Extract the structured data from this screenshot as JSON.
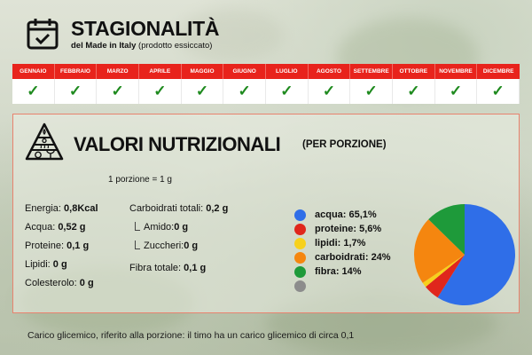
{
  "header": {
    "title": "STAGIONALITÀ",
    "subtitle_bold": "del Made in Italy",
    "subtitle_rest": " (prodotto essiccato)",
    "icon": "calendar-check-icon"
  },
  "seasonality": {
    "header_color": "#e8231c",
    "check_color": "#1e8a1e",
    "check_glyph": "✓",
    "months": [
      {
        "name": "GENNAIO",
        "available": true
      },
      {
        "name": "FEBBRAIO",
        "available": true
      },
      {
        "name": "MARZO",
        "available": true
      },
      {
        "name": "APRILE",
        "available": true
      },
      {
        "name": "MAGGIO",
        "available": true
      },
      {
        "name": "GIUGNO",
        "available": true
      },
      {
        "name": "LUGLIO",
        "available": true
      },
      {
        "name": "AGOSTO",
        "available": true
      },
      {
        "name": "SETTEMBRE",
        "available": true
      },
      {
        "name": "OTTOBRE",
        "available": true
      },
      {
        "name": "NOVEMBRE",
        "available": true
      },
      {
        "name": "DICEMBRE",
        "available": true
      }
    ]
  },
  "nutrition": {
    "icon": "food-pyramid-icon",
    "title": "VALORI NUTRIZIONALI",
    "title_suffix": "(PER PORZIONE)",
    "portion": "1 porzione = 1 g",
    "left_column": [
      {
        "label": "Energia: ",
        "value": "0,8Kcal"
      },
      {
        "label": "Acqua: ",
        "value": "0,52 g"
      },
      {
        "label": "Proteine: ",
        "value": "0,1 g"
      },
      {
        "label": "Lipidi: ",
        "value": "0 g"
      },
      {
        "label": "Colesterolo: ",
        "value": "0 g"
      }
    ],
    "mid_column": [
      {
        "label": "Carboidrati totali: ",
        "value": "0,2 g",
        "sub": false
      },
      {
        "label": "Amido: ",
        "value": "0 g",
        "sub": true
      },
      {
        "label": "Zuccheri: ",
        "value": "0 g",
        "sub": true
      },
      {
        "label": "Fibra totale: ",
        "value": "0,1 g",
        "sub": false
      }
    ],
    "legend": [
      {
        "label": "acqua: 65,1%",
        "color": "#2f6ee8"
      },
      {
        "label": "proteine: 5,6%",
        "color": "#e0261c"
      },
      {
        "label": "lipidi: 1,7%",
        "color": "#f7d11c"
      },
      {
        "label": "carboidrati: 24%",
        "color": "#f5860f"
      },
      {
        "label": "fibra: 14%",
        "color": "#1e9a3a"
      },
      {
        "label": "",
        "color": "#8c8c8c"
      }
    ]
  },
  "chart_data": {
    "type": "pie",
    "title": "Composizione (per porzione)",
    "categories": [
      "acqua",
      "proteine",
      "lipidi",
      "carboidrati",
      "fibra"
    ],
    "values": [
      65.1,
      5.6,
      1.7,
      24,
      14
    ],
    "colors": [
      "#2f6ee8",
      "#e0261c",
      "#f7d11c",
      "#f5860f",
      "#1e9a3a"
    ],
    "legend_position": "left"
  },
  "footer": {
    "note": "Carico glicemico, riferito alla porzione: il timo ha un carico glicemico di circa 0,1"
  }
}
